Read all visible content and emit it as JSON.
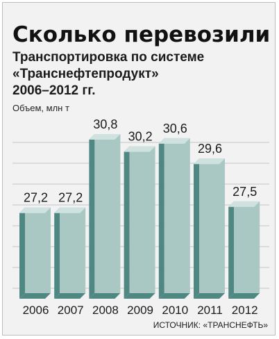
{
  "header": {
    "title": "Сколько перевозили",
    "subtitle_line1": "Транспортировка по системе",
    "subtitle_line2": "«Транснефтепродукт»",
    "subtitle_line3": "2006–2012 гг."
  },
  "footer": {
    "source": "ИСТОЧНИК: «ТРАНСНЕФТЬ»"
  },
  "colors": {
    "bar_front": "#a9c8c4",
    "bar_side": "#4f8783",
    "bar_top": "#cfe2df",
    "background": "#f2f2f2"
  },
  "chart_data": {
    "type": "bar",
    "title": "Сколько перевозили",
    "subtitle": "Транспортировка по системе «Транснефтепродукт» 2006–2012 гг.",
    "ylabel": "Объем, млн т",
    "xlabel": "",
    "categories": [
      "2006",
      "2007",
      "2008",
      "2009",
      "2010",
      "2011",
      "2012"
    ],
    "values": [
      27.2,
      27.2,
      30.8,
      30.2,
      30.6,
      29.6,
      27.5
    ],
    "value_labels": [
      "27,2",
      "27,2",
      "30,8",
      "30,2",
      "30,6",
      "29,6",
      "27,5"
    ],
    "grid": true,
    "legend": "none",
    "three_d": true
  }
}
